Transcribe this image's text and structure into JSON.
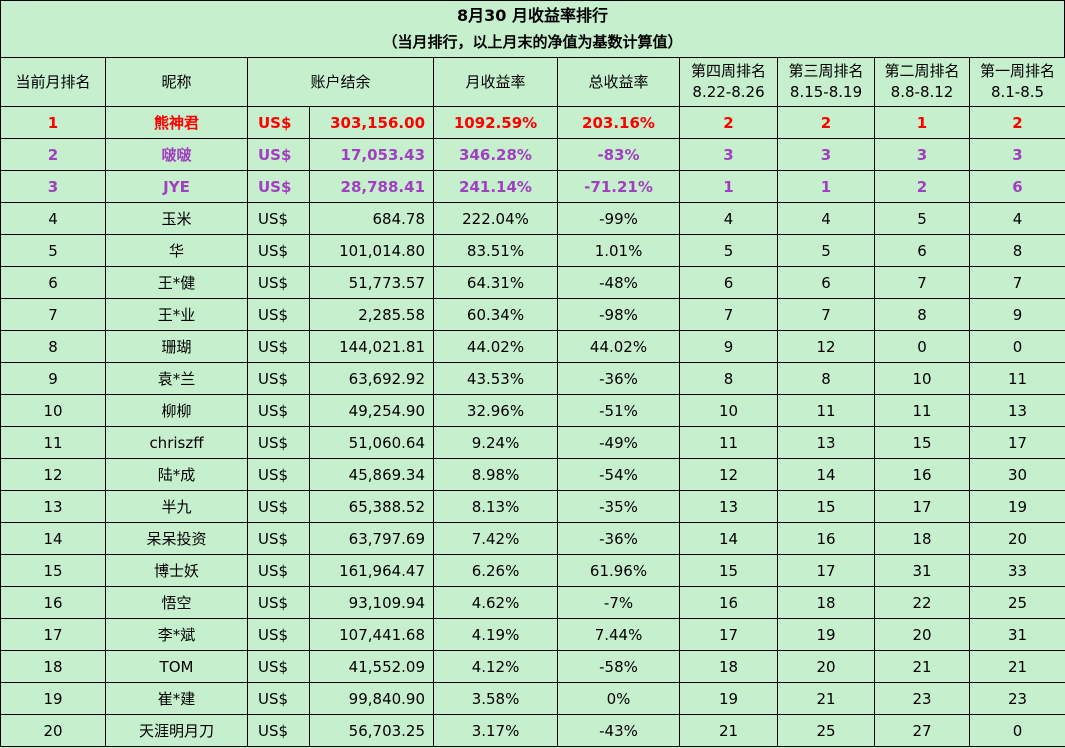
{
  "title": {
    "line1": "8月30 月收益率排行",
    "line2": "（当月排行，以上月末的净值为基数计算值）"
  },
  "headers": {
    "rank": "当前月排名",
    "nick": "昵称",
    "balance": "账户结余",
    "monthly": "月收益率",
    "total": "总收益率",
    "w4": "第四周排名",
    "w4_range": "8.22-8.26",
    "w3": "第三周排名",
    "w3_range": "8.15-8.19",
    "w2": "第二周排名",
    "w2_range": "8.8-8.12",
    "w1": "第一周排名",
    "w1_range": "8.1-8.5"
  },
  "colors": {
    "background": "#c6efce",
    "rank1": "#ff0000",
    "rank2_3": "#a040c0"
  },
  "rows": [
    {
      "rank": "1",
      "nick": "熊神君",
      "cur": "US$",
      "balance": "303,156.00",
      "monthly": "1092.59%",
      "total": "203.16%",
      "w4": "2",
      "w3": "2",
      "w2": "1",
      "w1": "2"
    },
    {
      "rank": "2",
      "nick": "啵啵",
      "cur": "US$",
      "balance": "17,053.43",
      "monthly": "346.28%",
      "total": "-83%",
      "w4": "3",
      "w3": "3",
      "w2": "3",
      "w1": "3"
    },
    {
      "rank": "3",
      "nick": "JYE",
      "cur": "US$",
      "balance": "28,788.41",
      "monthly": "241.14%",
      "total": "-71.21%",
      "w4": "1",
      "w3": "1",
      "w2": "2",
      "w1": "6"
    },
    {
      "rank": "4",
      "nick": "玉米",
      "cur": "US$",
      "balance": "684.78",
      "monthly": "222.04%",
      "total": "-99%",
      "w4": "4",
      "w3": "4",
      "w2": "5",
      "w1": "4"
    },
    {
      "rank": "5",
      "nick": "华",
      "cur": "US$",
      "balance": "101,014.80",
      "monthly": "83.51%",
      "total": "1.01%",
      "w4": "5",
      "w3": "5",
      "w2": "6",
      "w1": "8"
    },
    {
      "rank": "6",
      "nick": "王*健",
      "cur": "US$",
      "balance": "51,773.57",
      "monthly": "64.31%",
      "total": "-48%",
      "w4": "6",
      "w3": "6",
      "w2": "7",
      "w1": "7"
    },
    {
      "rank": "7",
      "nick": "王*业",
      "cur": "US$",
      "balance": "2,285.58",
      "monthly": "60.34%",
      "total": "-98%",
      "w4": "7",
      "w3": "7",
      "w2": "8",
      "w1": "9"
    },
    {
      "rank": "8",
      "nick": "珊瑚",
      "cur": "US$",
      "balance": "144,021.81",
      "monthly": "44.02%",
      "total": "44.02%",
      "w4": "9",
      "w3": "12",
      "w2": "0",
      "w1": "0"
    },
    {
      "rank": "9",
      "nick": "袁*兰",
      "cur": "US$",
      "balance": "63,692.92",
      "monthly": "43.53%",
      "total": "-36%",
      "w4": "8",
      "w3": "8",
      "w2": "10",
      "w1": "11"
    },
    {
      "rank": "10",
      "nick": "柳柳",
      "cur": "US$",
      "balance": "49,254.90",
      "monthly": "32.96%",
      "total": "-51%",
      "w4": "10",
      "w3": "11",
      "w2": "11",
      "w1": "13"
    },
    {
      "rank": "11",
      "nick": "chriszff",
      "cur": "US$",
      "balance": "51,060.64",
      "monthly": "9.24%",
      "total": "-49%",
      "w4": "11",
      "w3": "13",
      "w2": "15",
      "w1": "17"
    },
    {
      "rank": "12",
      "nick": "陆*成",
      "cur": "US$",
      "balance": "45,869.34",
      "monthly": "8.98%",
      "total": "-54%",
      "w4": "12",
      "w3": "14",
      "w2": "16",
      "w1": "30"
    },
    {
      "rank": "13",
      "nick": "半九",
      "cur": "US$",
      "balance": "65,388.52",
      "monthly": "8.13%",
      "total": "-35%",
      "w4": "13",
      "w3": "15",
      "w2": "17",
      "w1": "19"
    },
    {
      "rank": "14",
      "nick": "呆呆投资",
      "cur": "US$",
      "balance": "63,797.69",
      "monthly": "7.42%",
      "total": "-36%",
      "w4": "14",
      "w3": "16",
      "w2": "18",
      "w1": "20"
    },
    {
      "rank": "15",
      "nick": "博士妖",
      "cur": "US$",
      "balance": "161,964.47",
      "monthly": "6.26%",
      "total": "61.96%",
      "w4": "15",
      "w3": "17",
      "w2": "31",
      "w1": "33"
    },
    {
      "rank": "16",
      "nick": "悟空",
      "cur": "US$",
      "balance": "93,109.94",
      "monthly": "4.62%",
      "total": "-7%",
      "w4": "16",
      "w3": "18",
      "w2": "22",
      "w1": "25"
    },
    {
      "rank": "17",
      "nick": "李*斌",
      "cur": "US$",
      "balance": "107,441.68",
      "monthly": "4.19%",
      "total": "7.44%",
      "w4": "17",
      "w3": "19",
      "w2": "20",
      "w1": "31"
    },
    {
      "rank": "18",
      "nick": "TOM",
      "cur": "US$",
      "balance": "41,552.09",
      "monthly": "4.12%",
      "total": "-58%",
      "w4": "18",
      "w3": "20",
      "w2": "21",
      "w1": "21"
    },
    {
      "rank": "19",
      "nick": "崔*建",
      "cur": "US$",
      "balance": "99,840.90",
      "monthly": "3.58%",
      "total": "0%",
      "w4": "19",
      "w3": "21",
      "w2": "23",
      "w1": "23"
    },
    {
      "rank": "20",
      "nick": "天涯明月刀",
      "cur": "US$",
      "balance": "56,703.25",
      "monthly": "3.17%",
      "total": "-43%",
      "w4": "21",
      "w3": "25",
      "w2": "27",
      "w1": "0"
    }
  ]
}
